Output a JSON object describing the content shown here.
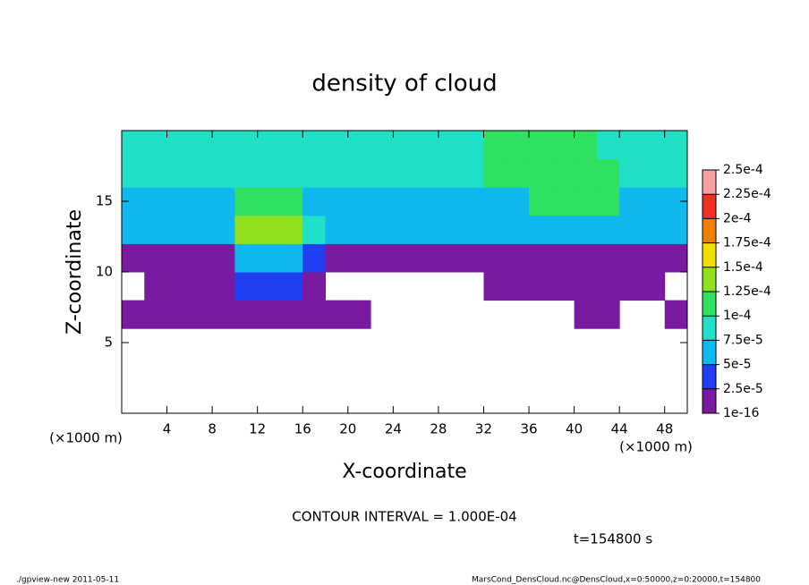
{
  "chart_data": {
    "type": "heatmap",
    "title": "density of cloud",
    "x_label": "X-coordinate",
    "y_label": "Z-coordinate",
    "x_unit": "(×1000 m)",
    "y_unit": "(×1000 m)",
    "contour_note": "CONTOUR INTERVAL = 1.000E-04",
    "time_label": "t=154800 s",
    "footer_left": "./gpview-new  2011-05-11",
    "footer_right": "MarsCond_DensCloud.nc@DensCloud,x=0:50000,z=0:20000,t=154800",
    "xlim": [
      0,
      50
    ],
    "ylim": [
      0,
      20
    ],
    "xticks": [
      4,
      8,
      12,
      16,
      20,
      24,
      28,
      32,
      36,
      40,
      44,
      48
    ],
    "yticks": [
      5,
      10,
      15
    ],
    "xbins": [
      0,
      2,
      4,
      6,
      8,
      10,
      12,
      14,
      16,
      18,
      20,
      22,
      24,
      26,
      28,
      30,
      32,
      34,
      36,
      38,
      40,
      42,
      44,
      46,
      48,
      50
    ],
    "ybins": [
      0,
      2,
      4,
      6,
      8,
      10,
      12,
      14,
      16,
      18,
      20
    ],
    "values": [
      [
        null,
        null,
        null,
        null,
        null,
        null,
        null,
        null,
        null,
        null,
        null,
        null,
        null,
        null,
        null,
        null,
        null,
        null,
        null,
        null,
        null,
        null,
        null,
        null,
        null
      ],
      [
        null,
        null,
        null,
        null,
        null,
        null,
        null,
        null,
        null,
        null,
        null,
        null,
        null,
        null,
        null,
        null,
        null,
        null,
        null,
        null,
        null,
        null,
        null,
        null,
        null
      ],
      [
        null,
        null,
        null,
        null,
        null,
        null,
        null,
        null,
        null,
        null,
        null,
        null,
        null,
        null,
        null,
        null,
        null,
        null,
        null,
        null,
        null,
        null,
        null,
        null,
        null
      ],
      [
        1e-05,
        1e-05,
        1e-05,
        1e-05,
        1e-05,
        1e-05,
        1e-05,
        1e-05,
        1e-05,
        1e-05,
        1e-05,
        null,
        null,
        null,
        null,
        null,
        null,
        null,
        null,
        null,
        1e-05,
        1e-05,
        null,
        null,
        1e-05
      ],
      [
        null,
        1e-05,
        1e-05,
        1e-05,
        1e-05,
        4e-05,
        4e-05,
        4e-05,
        1e-05,
        null,
        null,
        null,
        null,
        null,
        null,
        null,
        1e-05,
        1e-05,
        1e-05,
        1e-05,
        1e-05,
        1e-05,
        1e-05,
        1e-05,
        null
      ],
      [
        1.5e-05,
        1.5e-05,
        1.5e-05,
        1.5e-05,
        1.5e-05,
        5e-05,
        5e-05,
        5e-05,
        3e-05,
        1.5e-05,
        1.5e-05,
        1.5e-05,
        1.5e-05,
        1.5e-05,
        1.5e-05,
        1.5e-05,
        1.5e-05,
        1.5e-05,
        1.5e-05,
        1.5e-05,
        1.5e-05,
        1.5e-05,
        1.5e-05,
        1.5e-05,
        1.5e-05
      ],
      [
        5e-05,
        5e-05,
        5e-05,
        5e-05,
        5e-05,
        0.00014,
        0.00014,
        0.00014,
        8e-05,
        5e-05,
        5e-05,
        5e-05,
        5e-05,
        5e-05,
        5e-05,
        5e-05,
        5e-05,
        5e-05,
        5e-05,
        5e-05,
        5e-05,
        5e-05,
        5e-05,
        5e-05,
        5e-05
      ],
      [
        7e-05,
        7e-05,
        7e-05,
        7e-05,
        7e-05,
        0.00012,
        0.00012,
        0.00012,
        7e-05,
        7e-05,
        7e-05,
        7e-05,
        7e-05,
        7e-05,
        7e-05,
        7e-05,
        7e-05,
        7e-05,
        0.000105,
        0.000105,
        0.000105,
        0.000105,
        7e-05,
        7e-05,
        7e-05
      ],
      [
        8e-05,
        8e-05,
        8e-05,
        8e-05,
        8e-05,
        8e-05,
        8e-05,
        8e-05,
        8e-05,
        8e-05,
        8e-05,
        8e-05,
        8e-05,
        8e-05,
        8e-05,
        8e-05,
        0.00011,
        0.00011,
        0.00011,
        0.00011,
        0.00011,
        0.00011,
        9e-05,
        8e-05,
        8e-05
      ],
      [
        8e-05,
        8e-05,
        8e-05,
        8e-05,
        8e-05,
        8e-05,
        8e-05,
        8e-05,
        8e-05,
        8e-05,
        8e-05,
        8e-05,
        8e-05,
        8e-05,
        8e-05,
        8e-05,
        0.000105,
        0.000105,
        0.000105,
        0.000105,
        0.000105,
        8e-05,
        8e-05,
        8e-05,
        8e-05
      ]
    ],
    "levels": [
      1e-16,
      {
        "value": 2.5e-05,
        "label": "2.5e-5"
      },
      {
        "value": 5e-05,
        "label": "5e-5"
      },
      {
        "value": 7.5e-05,
        "label": "7.5e-5"
      },
      {
        "value": 0.0001,
        "label": "1e-4"
      },
      {
        "value": 0.000125,
        "label": "1.25e-4"
      },
      {
        "value": 0.00015,
        "label": "1.5e-4"
      },
      {
        "value": 0.000175,
        "label": "1.75e-4"
      },
      {
        "value": 0.0002,
        "label": "2e-4"
      },
      {
        "value": 0.000225,
        "label": "2.25e-4"
      },
      {
        "value": 0.00025,
        "label": "2.5e-4"
      }
    ],
    "level_colors": [
      "#7a1aa0",
      "#1f3ff0",
      "#10b8f0",
      "#20e0c8",
      "#30e060",
      "#90e020",
      "#f0e000",
      "#f08000",
      "#f03020",
      "#f8a0a0"
    ]
  }
}
